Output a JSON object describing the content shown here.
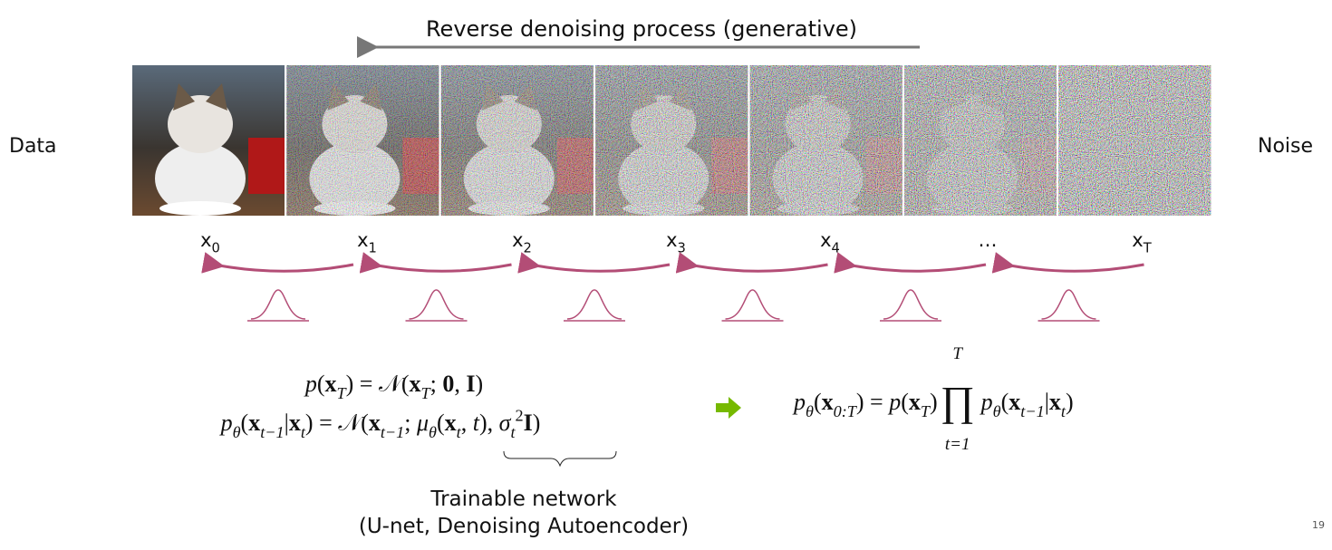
{
  "title": "Reverse denoising process (generative)",
  "left_label": "Data",
  "right_label": "Noise",
  "steps": [
    [
      [
        "x",
        "r"
      ],
      [
        "0",
        "sub"
      ]
    ],
    [
      [
        "x",
        "r"
      ],
      [
        "1",
        "sub"
      ]
    ],
    [
      [
        "x",
        "r"
      ],
      [
        "2",
        "sub"
      ]
    ],
    [
      [
        "x",
        "r"
      ],
      [
        "3",
        "sub"
      ]
    ],
    [
      [
        "x",
        "r"
      ],
      [
        "4",
        "sub"
      ]
    ],
    [
      [
        "…",
        "r"
      ]
    ],
    [
      [
        "x",
        "r"
      ],
      [
        "T",
        "sub"
      ]
    ]
  ],
  "equations": {
    "prior": [
      [
        "p",
        "i"
      ],
      [
        "(",
        "r"
      ],
      [
        "x",
        "b"
      ],
      [
        "T",
        "isub"
      ],
      [
        ") = ",
        "r"
      ],
      [
        "𝒩",
        "r"
      ],
      [
        "(",
        "r"
      ],
      [
        "x",
        "b"
      ],
      [
        "T",
        "isub"
      ],
      [
        "; ",
        "r"
      ],
      [
        "0",
        "b"
      ],
      [
        ", ",
        "r"
      ],
      [
        "I",
        "b"
      ],
      [
        ")",
        "r"
      ]
    ],
    "transition": [
      [
        "p",
        "i"
      ],
      [
        "θ",
        "isub"
      ],
      [
        "(",
        "r"
      ],
      [
        "x",
        "b"
      ],
      [
        "t−1",
        "isub"
      ],
      [
        "|",
        "r"
      ],
      [
        "x",
        "b"
      ],
      [
        "t",
        "isub"
      ],
      [
        ") = ",
        "r"
      ],
      [
        "𝒩",
        "r"
      ],
      [
        "(",
        "r"
      ],
      [
        "x",
        "b"
      ],
      [
        "t−1",
        "isub"
      ],
      [
        "; ",
        "r"
      ],
      [
        "μ",
        "i"
      ],
      [
        "θ",
        "isub"
      ],
      [
        "(",
        "r"
      ],
      [
        "x",
        "b"
      ],
      [
        "t",
        "isub"
      ],
      [
        ", ",
        "r"
      ],
      [
        "t",
        "i"
      ],
      [
        "), ",
        "r"
      ],
      [
        "σ",
        "i"
      ],
      [
        "t",
        "isub"
      ],
      [
        "2",
        "sup"
      ],
      [
        "I",
        "b"
      ],
      [
        ")",
        "r"
      ]
    ],
    "joint_left": [
      [
        "p",
        "i"
      ],
      [
        "θ",
        "isub"
      ],
      [
        "(",
        "r"
      ],
      [
        "x",
        "b"
      ],
      [
        "0:T",
        "isub"
      ],
      [
        ") = ",
        "r"
      ],
      [
        "p",
        "i"
      ],
      [
        "(",
        "r"
      ],
      [
        "x",
        "b"
      ],
      [
        "T",
        "isub"
      ],
      [
        ")",
        "r"
      ]
    ],
    "product": {
      "upper": "T",
      "symbol": "∏",
      "lower": "t=1"
    },
    "joint_right": [
      [
        "p",
        "i"
      ],
      [
        "θ",
        "isub"
      ],
      [
        "(",
        "r"
      ],
      [
        "x",
        "b"
      ],
      [
        "t−1",
        "isub"
      ],
      [
        "|",
        "r"
      ],
      [
        "x",
        "b"
      ],
      [
        "t",
        "isub"
      ],
      [
        ")",
        "r"
      ]
    ]
  },
  "annotation": [
    "Trainable network",
    "(U-net, Denoising Autoencoder)"
  ],
  "page_number": "19"
}
